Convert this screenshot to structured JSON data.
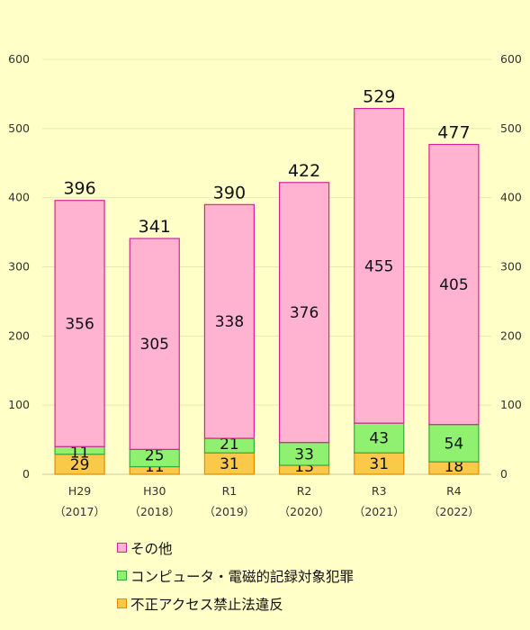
{
  "chart_data": {
    "type": "bar",
    "stacked": true,
    "categories": [
      {
        "line1": "H29",
        "line2": "（2017）"
      },
      {
        "line1": "H30",
        "line2": "（2018）"
      },
      {
        "line1": "R1",
        "line2": "（2019）"
      },
      {
        "line1": "R2",
        "line2": "（2020）"
      },
      {
        "line1": "R3",
        "line2": "（2021）"
      },
      {
        "line1": "R4",
        "line2": "（2022）"
      }
    ],
    "series": [
      {
        "name": "不正アクセス禁止法違反",
        "values": [
          29,
          11,
          31,
          13,
          31,
          18
        ],
        "color": "#fbc94a",
        "stroke": "#e08c00"
      },
      {
        "name": "コンピュータ・電磁的記録対象犯罪",
        "values": [
          11,
          25,
          21,
          33,
          43,
          54
        ],
        "color": "#90f070",
        "stroke": "#3aa83a"
      },
      {
        "name": "その他",
        "values": [
          356,
          305,
          338,
          376,
          455,
          405
        ],
        "color": "#ffb3d1",
        "stroke": "#d4239a"
      }
    ],
    "totals": [
      396,
      341,
      390,
      422,
      529,
      477
    ],
    "ylim": [
      0,
      600
    ],
    "yticks": [
      0,
      100,
      200,
      300,
      400,
      500,
      600
    ],
    "secondary_axis": true,
    "grid": true,
    "legend_position": "bottom",
    "legend_order": [
      "その他",
      "コンピュータ・電磁的記録対象犯罪",
      "不正アクセス禁止法違反"
    ]
  }
}
